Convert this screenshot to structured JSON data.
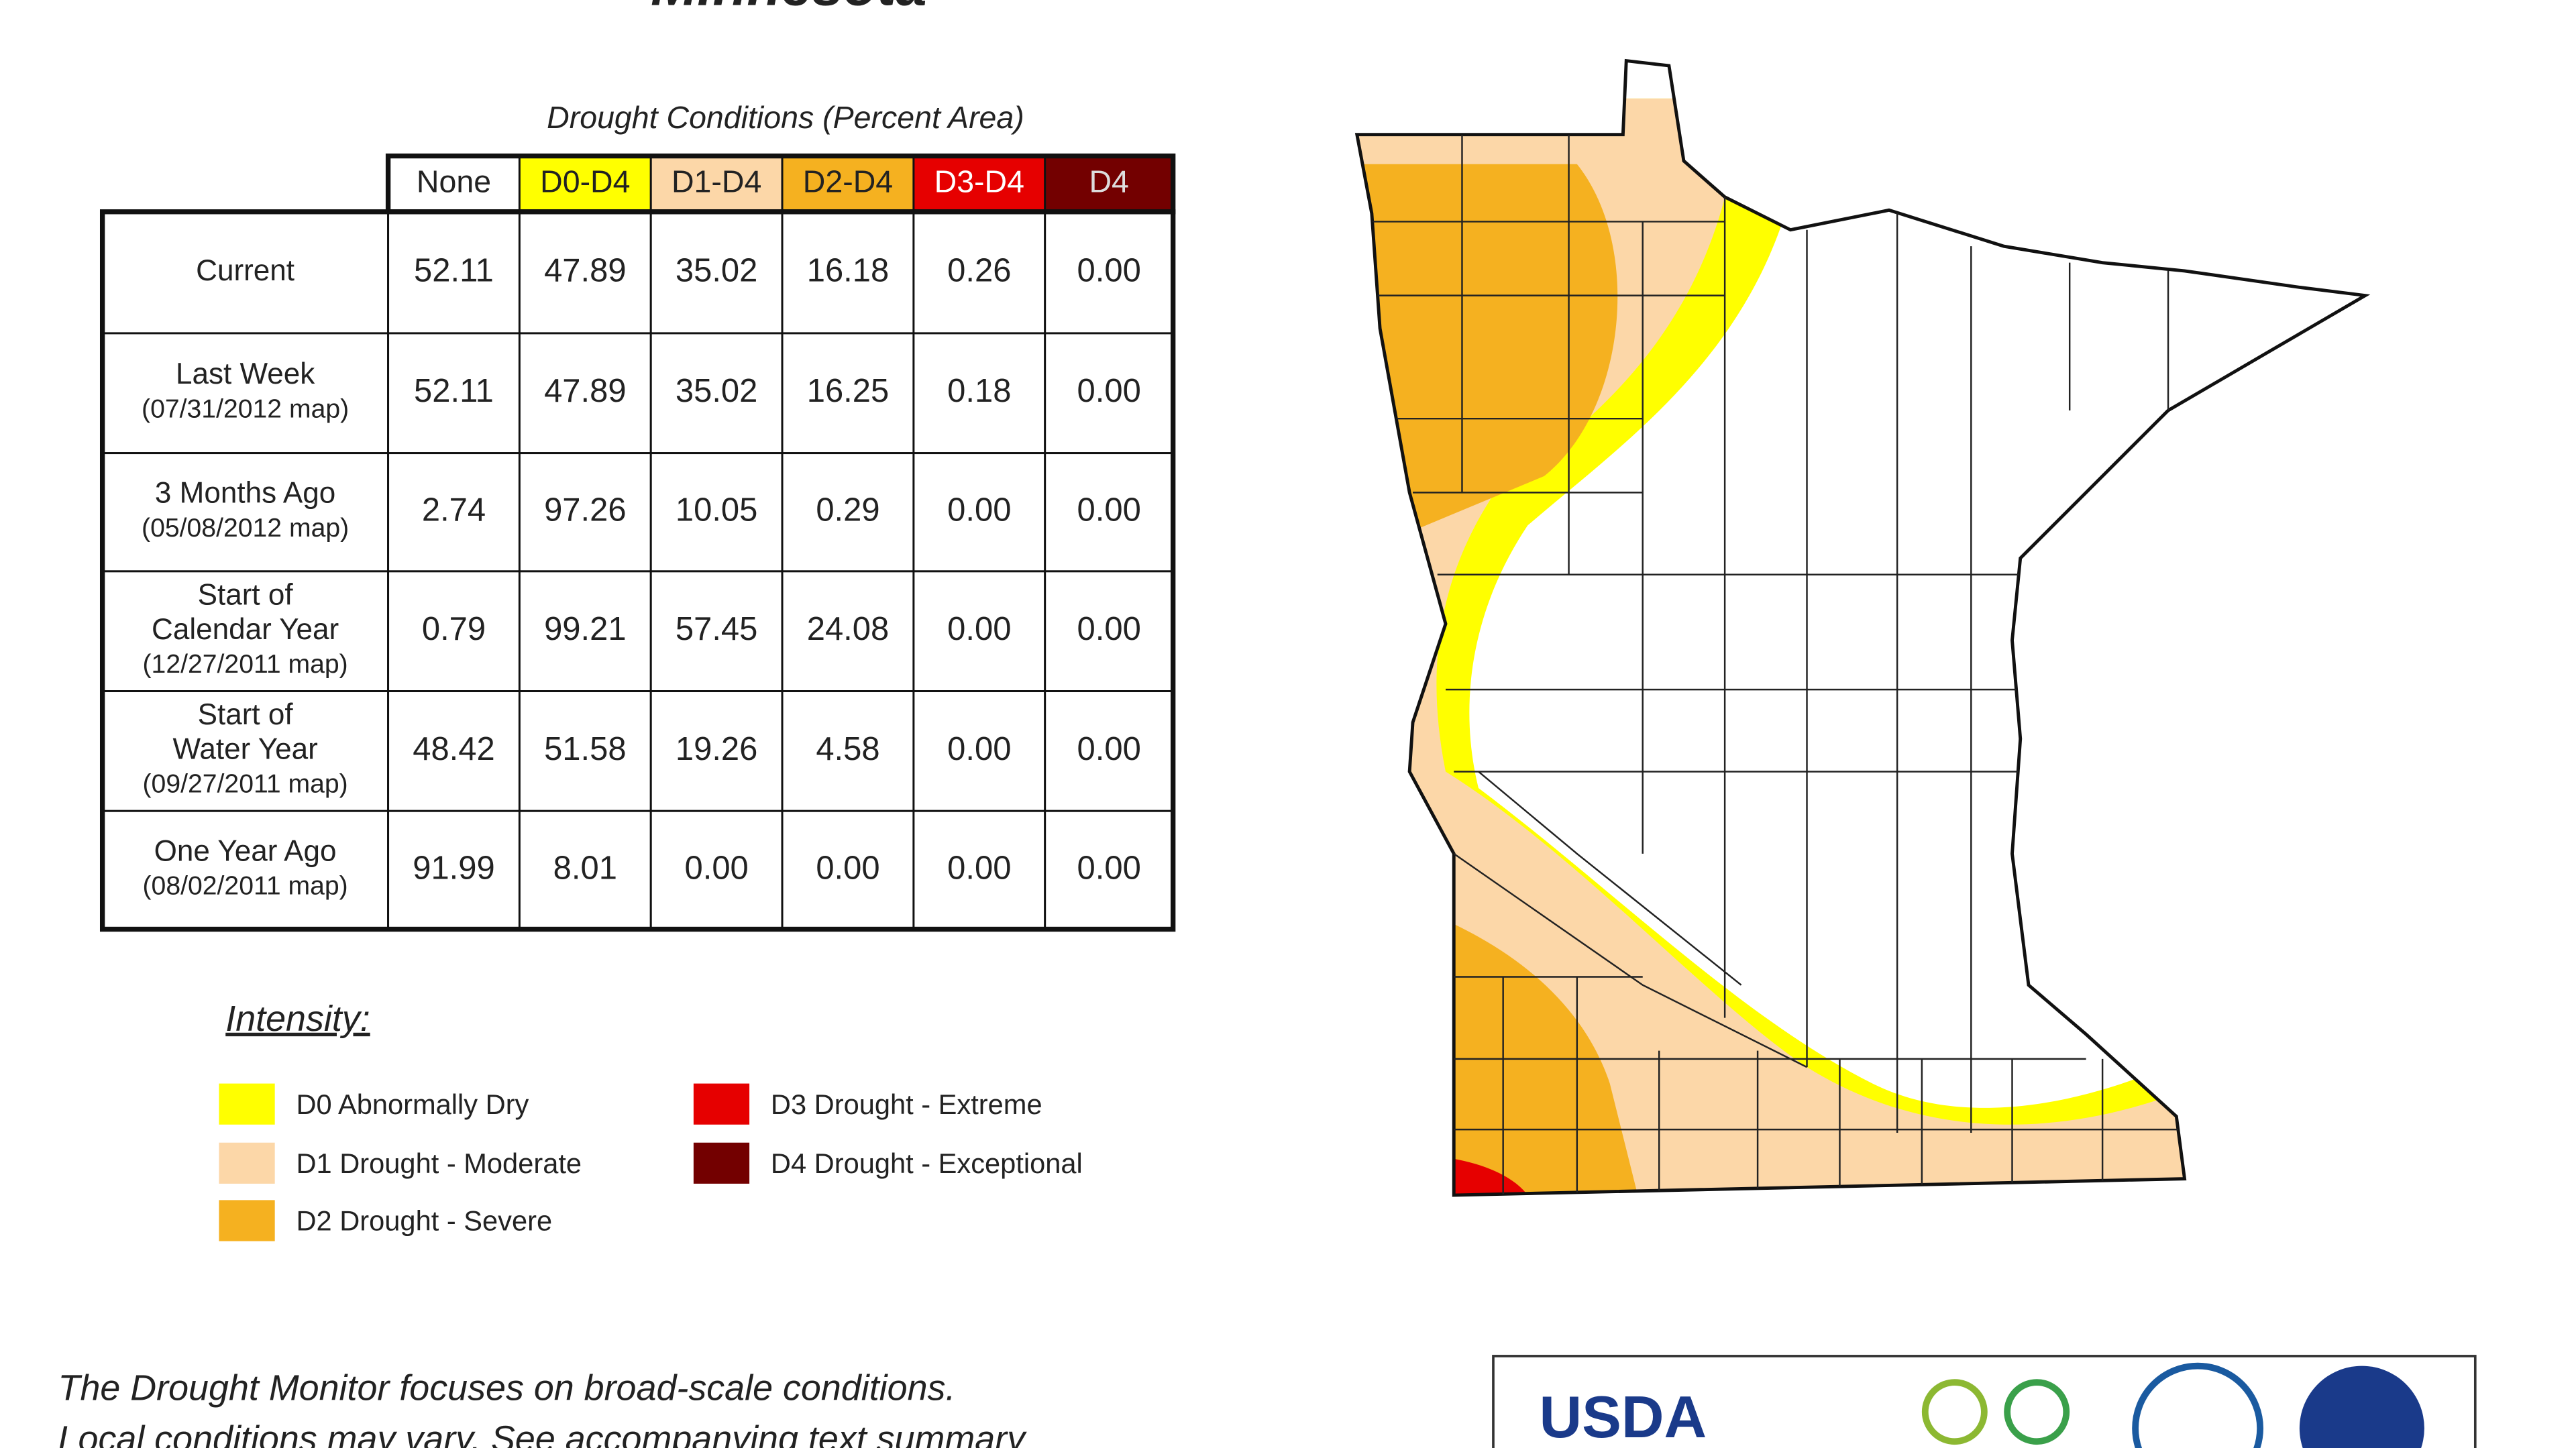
{
  "title": "Minnesota",
  "table": {
    "caption": "Drought Conditions (Percent Area)",
    "headers": [
      "None",
      "D0-D4",
      "D1-D4",
      "D2-D4",
      "D3-D4",
      "D4"
    ],
    "rows": [
      {
        "label": [
          "Current"
        ],
        "values": [
          "52.11",
          "47.89",
          "35.02",
          "16.18",
          "0.26",
          "0.00"
        ]
      },
      {
        "label": [
          "Last Week",
          "(07/31/2012 map)"
        ],
        "values": [
          "52.11",
          "47.89",
          "35.02",
          "16.25",
          "0.18",
          "0.00"
        ]
      },
      {
        "label": [
          "3 Months Ago",
          "(05/08/2012 map)"
        ],
        "values": [
          "2.74",
          "97.26",
          "10.05",
          "0.29",
          "0.00",
          "0.00"
        ]
      },
      {
        "label": [
          "Start of",
          "Calendar Year",
          "(12/27/2011 map)"
        ],
        "values": [
          "0.79",
          "99.21",
          "57.45",
          "24.08",
          "0.00",
          "0.00"
        ]
      },
      {
        "label": [
          "Start of",
          "Water Year",
          "(09/27/2011 map)"
        ],
        "values": [
          "48.42",
          "51.58",
          "19.26",
          "4.58",
          "0.00",
          "0.00"
        ]
      },
      {
        "label": [
          "One Year Ago",
          "(08/02/2011 map)"
        ],
        "values": [
          "91.99",
          "8.01",
          "0.00",
          "0.00",
          "0.00",
          "0.00"
        ]
      }
    ]
  },
  "legend": {
    "title": "Intensity:",
    "items": [
      {
        "label": "D0 Abnormally Dry",
        "color": "#ffff00"
      },
      {
        "label": "D1 Drought - Moderate",
        "color": "#fcd7a8"
      },
      {
        "label": "D2 Drought - Severe",
        "color": "#f5b120"
      },
      {
        "label": "D3 Drought - Extreme",
        "color": "#e60000"
      },
      {
        "label": "D4 Drought - Exceptional",
        "color": "#730000"
      }
    ]
  },
  "footer": {
    "lines": [
      "The Drought Monitor focuses on broad-scale conditions.",
      "Local conditions may vary. See accompanying text summary"
    ]
  },
  "logos": {
    "usda": "USDA"
  }
}
